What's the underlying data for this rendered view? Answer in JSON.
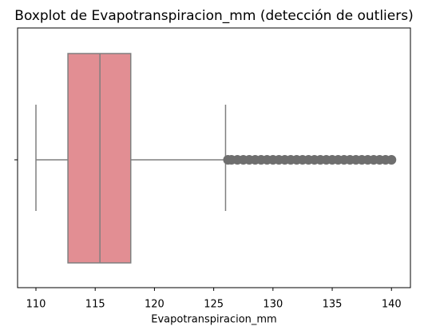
{
  "chart_data": {
    "type": "box",
    "title": "Boxplot de Evapotranspiracion_mm (detección de outliers)",
    "xlabel": "Evapotranspiracion_mm",
    "xlim": [
      108.45,
      141.6
    ],
    "xticks": [
      110,
      115,
      120,
      125,
      130,
      135,
      140
    ],
    "whislo": 110,
    "q1": 112.7,
    "median": 115.4,
    "q3": 118.0,
    "whishi": 126.0,
    "outliers": [
      126.2,
      126.5,
      127,
      127.5,
      128,
      128.5,
      129,
      129.5,
      130,
      130.5,
      131,
      131.5,
      132,
      132.5,
      133,
      133.5,
      134,
      134.5,
      135,
      135.5,
      136,
      136.5,
      137,
      137.5,
      138,
      138.5,
      139,
      139.5,
      140
    ],
    "color": "#e28e93",
    "edge_color": "#7f7f7f",
    "outlier_color": "#6e6e6e"
  }
}
